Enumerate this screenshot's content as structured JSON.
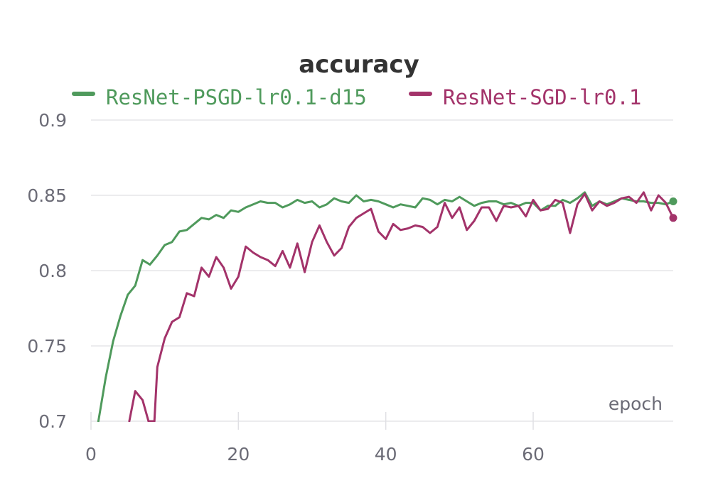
{
  "chart_data": {
    "type": "line",
    "title": "accuracy",
    "xlabel": "epoch",
    "ylabel": "",
    "xlim": [
      0,
      79
    ],
    "ylim": [
      0.7,
      0.9
    ],
    "x_ticks": [
      0,
      20,
      40,
      60
    ],
    "y_ticks": [
      0.7,
      0.75,
      0.8,
      0.85,
      0.9
    ],
    "x_tick_labels": [
      "0",
      "20",
      "40",
      "60"
    ],
    "y_tick_labels": [
      "0.7",
      "0.75",
      "0.8",
      "0.85",
      "0.9"
    ],
    "grid": "horizontal",
    "legend_position": "top",
    "series": [
      {
        "name": "ResNet-PSGD-lr0.1-d15",
        "color": "#4f9a5c",
        "x": [
          1,
          2,
          3,
          4,
          5,
          6,
          7,
          8,
          9,
          10,
          11,
          12,
          13,
          14,
          15,
          16,
          17,
          18,
          19,
          20,
          21,
          22,
          23,
          24,
          25,
          26,
          27,
          28,
          29,
          30,
          31,
          32,
          33,
          34,
          35,
          36,
          37,
          38,
          39,
          40,
          41,
          42,
          43,
          44,
          45,
          46,
          47,
          48,
          49,
          50,
          51,
          52,
          53,
          54,
          55,
          56,
          57,
          58,
          59,
          60,
          61,
          62,
          63,
          64,
          65,
          66,
          67,
          68,
          69,
          70,
          71,
          72,
          73,
          74,
          75,
          76,
          77,
          78,
          79
        ],
        "y": [
          0.7,
          0.729,
          0.753,
          0.77,
          0.784,
          0.79,
          0.807,
          0.804,
          0.81,
          0.817,
          0.819,
          0.826,
          0.827,
          0.831,
          0.835,
          0.834,
          0.837,
          0.835,
          0.84,
          0.839,
          0.842,
          0.844,
          0.846,
          0.845,
          0.845,
          0.842,
          0.844,
          0.847,
          0.845,
          0.846,
          0.842,
          0.844,
          0.848,
          0.846,
          0.845,
          0.85,
          0.846,
          0.847,
          0.846,
          0.844,
          0.842,
          0.844,
          0.843,
          0.842,
          0.848,
          0.847,
          0.844,
          0.847,
          0.846,
          0.849,
          0.846,
          0.843,
          0.845,
          0.846,
          0.846,
          0.844,
          0.845,
          0.843,
          0.845,
          0.845,
          0.84,
          0.843,
          0.843,
          0.847,
          0.845,
          0.848,
          0.852,
          0.843,
          0.846,
          0.844,
          0.846,
          0.848,
          0.847,
          0.846,
          0.846,
          0.845,
          0.845,
          0.844,
          0.846
        ]
      },
      {
        "name": "ResNet-SGD-lr0.1",
        "color": "#a3336a",
        "x": [
          5.2,
          6,
          7,
          7.8,
          8.6,
          9,
          10,
          11,
          12,
          13,
          14,
          15,
          16,
          17,
          18,
          19,
          20,
          21,
          22,
          23,
          24,
          25,
          26,
          27,
          28,
          29,
          30,
          31,
          32,
          33,
          34,
          35,
          36,
          37,
          38,
          39,
          40,
          41,
          42,
          43,
          44,
          45,
          46,
          47,
          48,
          49,
          50,
          51,
          52,
          53,
          54,
          55,
          56,
          57,
          58,
          59,
          60,
          61,
          62,
          63,
          64,
          65,
          66,
          67,
          68,
          69,
          70,
          71,
          72,
          73,
          74,
          75,
          76,
          77,
          78,
          79
        ],
        "y": [
          0.7,
          0.72,
          0.714,
          0.7,
          0.7,
          0.736,
          0.755,
          0.766,
          0.769,
          0.785,
          0.783,
          0.802,
          0.796,
          0.809,
          0.802,
          0.788,
          0.796,
          0.816,
          0.812,
          0.809,
          0.807,
          0.803,
          0.813,
          0.802,
          0.818,
          0.799,
          0.819,
          0.83,
          0.819,
          0.81,
          0.815,
          0.829,
          0.835,
          0.838,
          0.841,
          0.826,
          0.821,
          0.831,
          0.827,
          0.828,
          0.83,
          0.829,
          0.825,
          0.829,
          0.845,
          0.835,
          0.842,
          0.827,
          0.833,
          0.842,
          0.842,
          0.833,
          0.843,
          0.842,
          0.843,
          0.836,
          0.847,
          0.84,
          0.841,
          0.847,
          0.845,
          0.825,
          0.844,
          0.851,
          0.84,
          0.846,
          0.843,
          0.845,
          0.848,
          0.849,
          0.845,
          0.852,
          0.84,
          0.85,
          0.845,
          0.835
        ]
      }
    ]
  }
}
